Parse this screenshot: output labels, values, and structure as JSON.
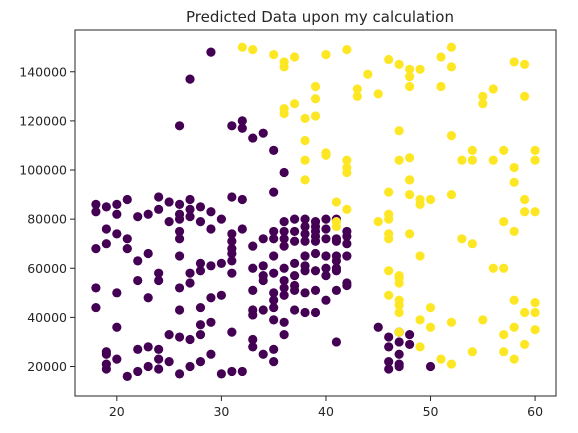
{
  "chart_data": {
    "type": "scatter",
    "title": "Predicted Data upon my calculation",
    "xlabel": "",
    "ylabel": "",
    "xlim": [
      16,
      62
    ],
    "ylim": [
      8000,
      157000
    ],
    "x_ticks": [
      20,
      30,
      40,
      50,
      60
    ],
    "y_ticks": [
      20000,
      40000,
      60000,
      80000,
      100000,
      120000,
      140000
    ],
    "x_tick_labels": [
      "20",
      "30",
      "40",
      "50",
      "60"
    ],
    "y_tick_labels": [
      "20000",
      "40000",
      "60000",
      "80000",
      "100000",
      "120000",
      "140000"
    ],
    "grid": false,
    "legend": "none",
    "colors": {
      "cluster_0": "#440154",
      "cluster_1": "#fde725"
    },
    "series": [
      {
        "color_key": "cluster_0",
        "points": [
          [
            18,
            86
          ],
          [
            18,
            83
          ],
          [
            18,
            68
          ],
          [
            18,
            52
          ],
          [
            18,
            44
          ],
          [
            19,
            85
          ],
          [
            19,
            76
          ],
          [
            19,
            70
          ],
          [
            19,
            26
          ],
          [
            19,
            25
          ],
          [
            19,
            21
          ],
          [
            19,
            19
          ],
          [
            20,
            86
          ],
          [
            20,
            82
          ],
          [
            20,
            74
          ],
          [
            20,
            50
          ],
          [
            20,
            36
          ],
          [
            20,
            23
          ],
          [
            21,
            88
          ],
          [
            21,
            72
          ],
          [
            21,
            68
          ],
          [
            21,
            16
          ],
          [
            22,
            81
          ],
          [
            22,
            63
          ],
          [
            22,
            55
          ],
          [
            22,
            27
          ],
          [
            22,
            18
          ],
          [
            23,
            82
          ],
          [
            23,
            66
          ],
          [
            23,
            48
          ],
          [
            23,
            28
          ],
          [
            23,
            20
          ],
          [
            24,
            89
          ],
          [
            24,
            84
          ],
          [
            24,
            58
          ],
          [
            24,
            55
          ],
          [
            24,
            27
          ],
          [
            24,
            23
          ],
          [
            24,
            19
          ],
          [
            25,
            87
          ],
          [
            25,
            79
          ],
          [
            25,
            33
          ],
          [
            25,
            22
          ],
          [
            26,
            118
          ],
          [
            26,
            86
          ],
          [
            26,
            82
          ],
          [
            26,
            80
          ],
          [
            26,
            75
          ],
          [
            26,
            72
          ],
          [
            26,
            65
          ],
          [
            26,
            52
          ],
          [
            26,
            43
          ],
          [
            26,
            32
          ],
          [
            26,
            17
          ],
          [
            27,
            137
          ],
          [
            27,
            88
          ],
          [
            27,
            84
          ],
          [
            27,
            81
          ],
          [
            27,
            58
          ],
          [
            27,
            54
          ],
          [
            27,
            31
          ],
          [
            27,
            20
          ],
          [
            28,
            85
          ],
          [
            28,
            79
          ],
          [
            28,
            62
          ],
          [
            28,
            59
          ],
          [
            28,
            44
          ],
          [
            28,
            37
          ],
          [
            28,
            33
          ],
          [
            28,
            22
          ],
          [
            29,
            148
          ],
          [
            29,
            83
          ],
          [
            29,
            76
          ],
          [
            29,
            61
          ],
          [
            29,
            48
          ],
          [
            29,
            38
          ],
          [
            29,
            25
          ],
          [
            30,
            80
          ],
          [
            30,
            62
          ],
          [
            30,
            49
          ],
          [
            30,
            17
          ],
          [
            31,
            118
          ],
          [
            31,
            89
          ],
          [
            31,
            74
          ],
          [
            31,
            71
          ],
          [
            31,
            68
          ],
          [
            31,
            66
          ],
          [
            31,
            63
          ],
          [
            31,
            58
          ],
          [
            31,
            34
          ],
          [
            31,
            18
          ],
          [
            32,
            120
          ],
          [
            32,
            117
          ],
          [
            32,
            88
          ],
          [
            32,
            76
          ],
          [
            32,
            18
          ],
          [
            33,
            113
          ],
          [
            33,
            69
          ],
          [
            33,
            60
          ],
          [
            33,
            51
          ],
          [
            33,
            43
          ],
          [
            33,
            41
          ],
          [
            33,
            31
          ],
          [
            33,
            28
          ],
          [
            34,
            115
          ],
          [
            34,
            72
          ],
          [
            34,
            61
          ],
          [
            34,
            57
          ],
          [
            34,
            55
          ],
          [
            34,
            43
          ],
          [
            34,
            25
          ],
          [
            35,
            108
          ],
          [
            35,
            91
          ],
          [
            35,
            75
          ],
          [
            35,
            72
          ],
          [
            35,
            65
          ],
          [
            35,
            58
          ],
          [
            35,
            50
          ],
          [
            35,
            47
          ],
          [
            35,
            44
          ],
          [
            35,
            39
          ],
          [
            35,
            27
          ],
          [
            35,
            22
          ],
          [
            36,
            99
          ],
          [
            36,
            79
          ],
          [
            36,
            75
          ],
          [
            36,
            72
          ],
          [
            36,
            69
          ],
          [
            36,
            60
          ],
          [
            36,
            55
          ],
          [
            36,
            52
          ],
          [
            36,
            49
          ],
          [
            36,
            38
          ],
          [
            36,
            33
          ],
          [
            37,
            80
          ],
          [
            37,
            75
          ],
          [
            37,
            71
          ],
          [
            37,
            62
          ],
          [
            37,
            57
          ],
          [
            37,
            53
          ],
          [
            37,
            51
          ],
          [
            37,
            43
          ],
          [
            38,
            80
          ],
          [
            38,
            77
          ],
          [
            38,
            74
          ],
          [
            38,
            71
          ],
          [
            38,
            65
          ],
          [
            38,
            61
          ],
          [
            38,
            59
          ],
          [
            38,
            50
          ],
          [
            38,
            42
          ],
          [
            39,
            79
          ],
          [
            39,
            77
          ],
          [
            39,
            75
          ],
          [
            39,
            73
          ],
          [
            39,
            71
          ],
          [
            39,
            66
          ],
          [
            39,
            59
          ],
          [
            39,
            51
          ],
          [
            39,
            42
          ],
          [
            40,
            80
          ],
          [
            40,
            76
          ],
          [
            40,
            72
          ],
          [
            40,
            65
          ],
          [
            40,
            60
          ],
          [
            40,
            57
          ],
          [
            40,
            47
          ],
          [
            41,
            80
          ],
          [
            41,
            72
          ],
          [
            41,
            71
          ],
          [
            41,
            65
          ],
          [
            41,
            63
          ],
          [
            41,
            60
          ],
          [
            41,
            59
          ],
          [
            41,
            51
          ],
          [
            41,
            30
          ],
          [
            42,
            75
          ],
          [
            42,
            73
          ],
          [
            42,
            70
          ],
          [
            42,
            65
          ],
          [
            42,
            54
          ],
          [
            42,
            53
          ],
          [
            45,
            36
          ],
          [
            46,
            32
          ],
          [
            46,
            28
          ],
          [
            46,
            22
          ],
          [
            46,
            19
          ],
          [
            47,
            34
          ],
          [
            47,
            30
          ],
          [
            47,
            25
          ],
          [
            47,
            21
          ],
          [
            47,
            20
          ],
          [
            48,
            33
          ],
          [
            48,
            29
          ],
          [
            50,
            20
          ]
        ]
      },
      {
        "color_key": "cluster_1",
        "points": [
          [
            32,
            150
          ],
          [
            33,
            149
          ],
          [
            35,
            147
          ],
          [
            36,
            144
          ],
          [
            36,
            142
          ],
          [
            36,
            125
          ],
          [
            36,
            123
          ],
          [
            37,
            146
          ],
          [
            37,
            127
          ],
          [
            38,
            121
          ],
          [
            38,
            112
          ],
          [
            38,
            104
          ],
          [
            38,
            96
          ],
          [
            39,
            134
          ],
          [
            39,
            129
          ],
          [
            39,
            122
          ],
          [
            40,
            147
          ],
          [
            40,
            107
          ],
          [
            40,
            106
          ],
          [
            41,
            87
          ],
          [
            41,
            79
          ],
          [
            41,
            77
          ],
          [
            42,
            149
          ],
          [
            42,
            104
          ],
          [
            42,
            101
          ],
          [
            42,
            99
          ],
          [
            42,
            84
          ],
          [
            43,
            133
          ],
          [
            43,
            130
          ],
          [
            44,
            139
          ],
          [
            45,
            79
          ],
          [
            45,
            131
          ],
          [
            46,
            145
          ],
          [
            46,
            91
          ],
          [
            46,
            82
          ],
          [
            46,
            80
          ],
          [
            46,
            74
          ],
          [
            46,
            72
          ],
          [
            46,
            59
          ],
          [
            46,
            49
          ],
          [
            47,
            143
          ],
          [
            47,
            104
          ],
          [
            47,
            116
          ],
          [
            47,
            57
          ],
          [
            47,
            56
          ],
          [
            47,
            54
          ],
          [
            47,
            47
          ],
          [
            47,
            45
          ],
          [
            47,
            42
          ],
          [
            47,
            34
          ],
          [
            48,
            141
          ],
          [
            48,
            138
          ],
          [
            48,
            134
          ],
          [
            48,
            105
          ],
          [
            48,
            96
          ],
          [
            48,
            90
          ],
          [
            48,
            96
          ],
          [
            48,
            74
          ],
          [
            49,
            141
          ],
          [
            49,
            88
          ],
          [
            49,
            86
          ],
          [
            49,
            65
          ],
          [
            49,
            39
          ],
          [
            49,
            28
          ],
          [
            50,
            88
          ],
          [
            50,
            44
          ],
          [
            50,
            36
          ],
          [
            51,
            146
          ],
          [
            51,
            134
          ],
          [
            51,
            23
          ],
          [
            52,
            150
          ],
          [
            52,
            142
          ],
          [
            52,
            114
          ],
          [
            52,
            90
          ],
          [
            52,
            38
          ],
          [
            52,
            21
          ],
          [
            53,
            104
          ],
          [
            53,
            72
          ],
          [
            54,
            108
          ],
          [
            54,
            104
          ],
          [
            54,
            70
          ],
          [
            54,
            26
          ],
          [
            55,
            130
          ],
          [
            55,
            127
          ],
          [
            55,
            39
          ],
          [
            56,
            133
          ],
          [
            56,
            104
          ],
          [
            56,
            60
          ],
          [
            57,
            108
          ],
          [
            57,
            79
          ],
          [
            57,
            60
          ],
          [
            57,
            33
          ],
          [
            57,
            26
          ],
          [
            58,
            144
          ],
          [
            58,
            101
          ],
          [
            58,
            95
          ],
          [
            58,
            75
          ],
          [
            58,
            47
          ],
          [
            58,
            36
          ],
          [
            58,
            23
          ],
          [
            59,
            143
          ],
          [
            59,
            130
          ],
          [
            59,
            88
          ],
          [
            59,
            83
          ],
          [
            59,
            42
          ],
          [
            59,
            29
          ],
          [
            60,
            108
          ],
          [
            60,
            104
          ],
          [
            60,
            83
          ],
          [
            60,
            46
          ],
          [
            60,
            42
          ],
          [
            60,
            35
          ]
        ]
      }
    ]
  }
}
